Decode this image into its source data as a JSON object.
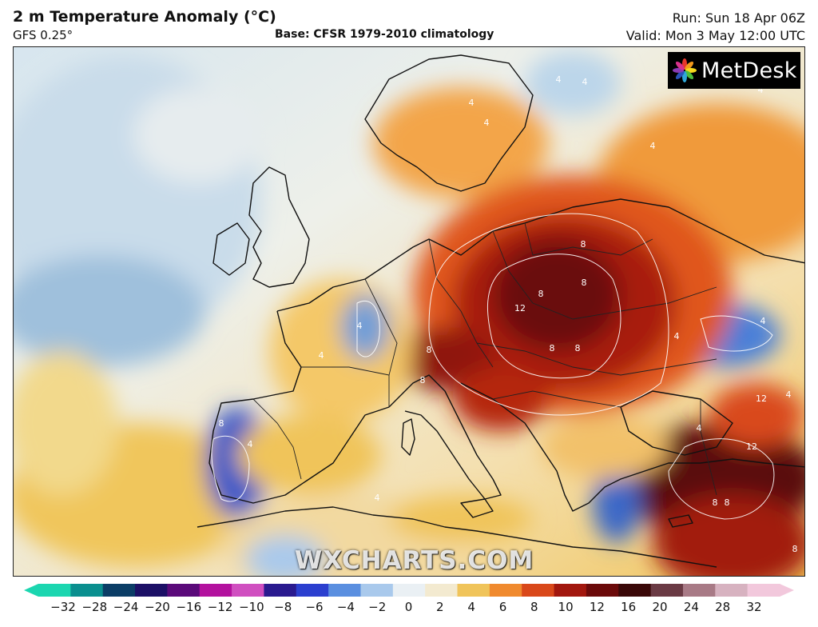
{
  "header": {
    "title": "2 m Temperature Anomaly (°C)",
    "model": "GFS 0.25°",
    "base": "Base: CFSR 1979-2010 climatology",
    "run": "Run: Sun 18 Apr 06Z",
    "valid": "Valid: Mon 3 May 12:00 UTC"
  },
  "logo": {
    "name": "MetDesk",
    "icon": "metdesk-flower-icon"
  },
  "watermark": "WXCHARTS.COM",
  "colorscale": {
    "ticks": [
      "−32",
      "−28",
      "−24",
      "−20",
      "−16",
      "−12",
      "−10",
      "−8",
      "−6",
      "−4",
      "−2",
      "0",
      "2",
      "4",
      "6",
      "8",
      "10",
      "12",
      "16",
      "20",
      "24",
      "28",
      "32"
    ],
    "colors": [
      "#1bd6b0",
      "#0a8f8f",
      "#0b3d66",
      "#1c1066",
      "#5a0a7a",
      "#b3119e",
      "#d04fc0",
      "#2a1a8f",
      "#2b3fcf",
      "#5a8fe0",
      "#a9c9ec",
      "#eaf0f4",
      "#f3ead0",
      "#f0c45a",
      "#f08a2e",
      "#d9481a",
      "#a2170e",
      "#6b0a0a",
      "#3a0808",
      "#6a3a44",
      "#a87a86",
      "#d7b2c0",
      "#f2c8dc"
    ]
  },
  "contour_labels": [
    "4",
    "4",
    "4",
    "4",
    "4",
    "4",
    "4",
    "4",
    "8",
    "8",
    "8",
    "8",
    "12",
    "8",
    "8",
    "8",
    "12",
    "8",
    "8",
    "8",
    "12",
    "4",
    "4",
    "4",
    "8",
    "4",
    "4",
    "4"
  ]
}
